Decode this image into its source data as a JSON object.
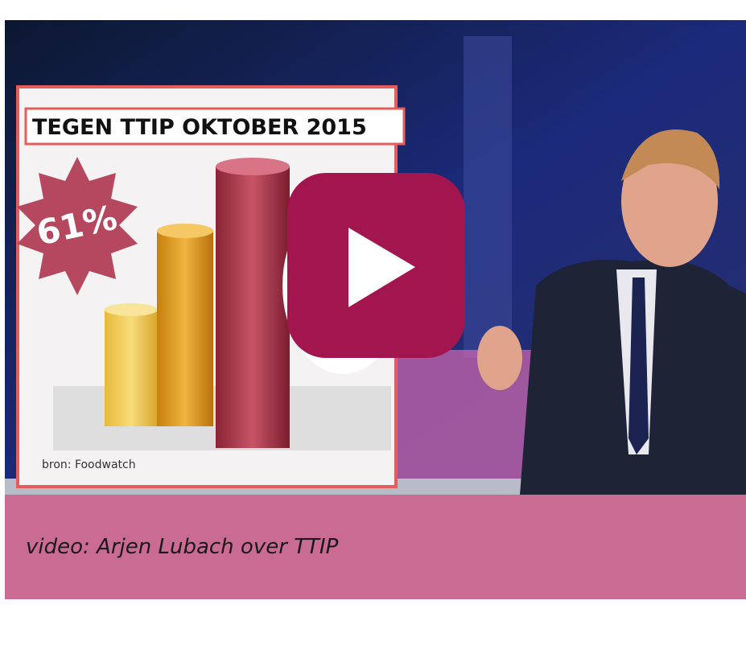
{
  "video": {
    "graphic": {
      "title": "TEGEN TTIP OKTOBER 2015",
      "badge": "61%",
      "source": "bron: Foodwatch"
    }
  },
  "caption": "video: Arjen Lubach over TTIP"
}
